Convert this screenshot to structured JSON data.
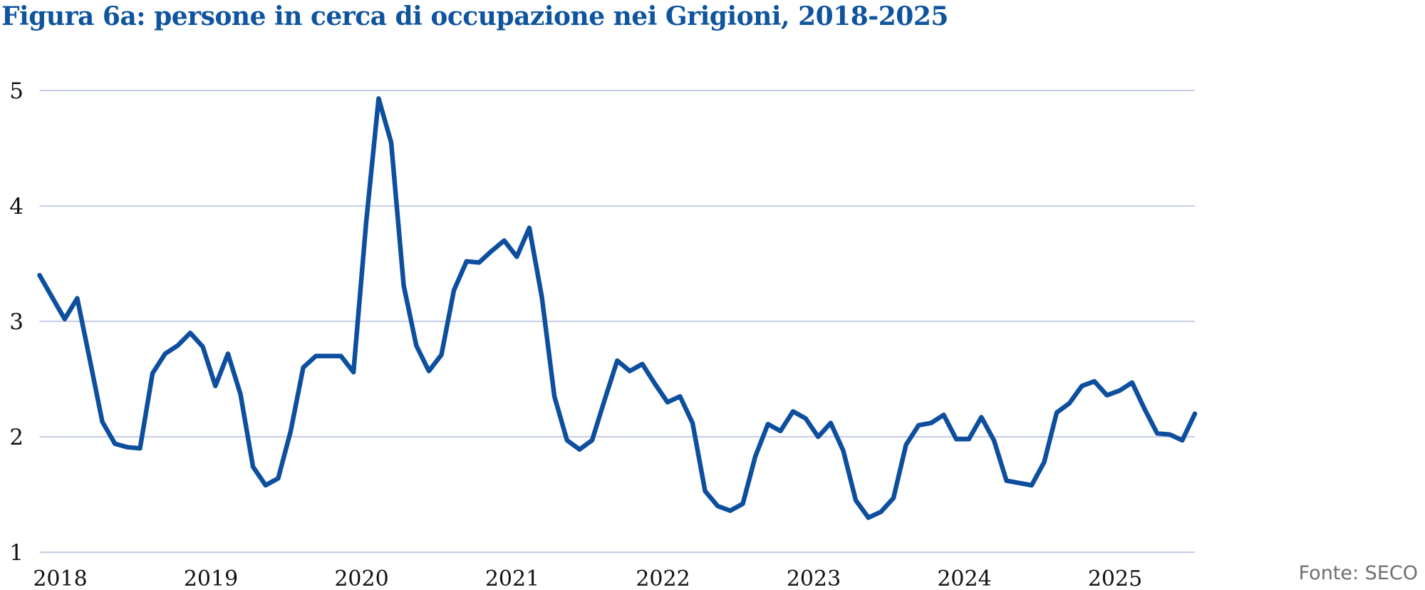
{
  "title": "Figura 6a: persone in cerca di occupazione nei Grigioni, 2018-2025",
  "source": "Fonte: SECO",
  "colors": {
    "line": "#0D4F9E",
    "title": "#0F549E",
    "grid": "#C5CDE6",
    "tick_label": "#111111",
    "source": "#6E6E6E",
    "background": "#FFFFFF"
  },
  "chart_data": {
    "type": "line",
    "title": "Figura 6a: persone in cerca di occupazione nei Grigioni, 2018-2025",
    "xlabel": "",
    "ylabel": "",
    "x_start": "2018-01",
    "x_end": "2025-09",
    "frequency": "monthly",
    "ylim": [
      1,
      5
    ],
    "y_ticks": [
      5,
      4,
      3,
      2,
      1
    ],
    "year_labels": [
      "2018",
      "2019",
      "2020",
      "2021",
      "2022",
      "2023",
      "2024",
      "2025"
    ],
    "grid": "horizontal",
    "legend": "none",
    "series": [
      {
        "name": "persone in cerca di occupazione nei Grigioni (%)",
        "values": [
          3.4,
          3.21,
          3.02,
          3.2,
          2.67,
          2.13,
          1.94,
          1.91,
          1.9,
          2.55,
          2.72,
          2.79,
          2.9,
          2.78,
          2.44,
          2.72,
          2.37,
          1.74,
          1.58,
          1.64,
          2.05,
          2.6,
          2.7,
          2.7,
          2.7,
          2.56,
          3.85,
          4.93,
          4.55,
          3.31,
          2.79,
          2.57,
          2.71,
          3.27,
          3.52,
          3.51,
          3.61,
          3.7,
          3.56,
          3.81,
          3.21,
          2.35,
          1.97,
          1.89,
          1.97,
          2.32,
          2.66,
          2.57,
          2.63,
          2.46,
          2.3,
          2.35,
          2.12,
          1.53,
          1.4,
          1.36,
          1.42,
          1.83,
          2.11,
          2.05,
          2.22,
          2.16,
          2.0,
          2.12,
          1.88,
          1.45,
          1.3,
          1.35,
          1.47,
          1.93,
          2.1,
          2.12,
          2.19,
          1.98,
          1.98,
          2.17,
          1.97,
          1.62,
          1.6,
          1.58,
          1.78,
          2.21,
          2.29,
          2.44,
          2.48,
          2.36,
          2.4,
          2.47,
          2.24,
          2.03,
          2.02,
          1.97,
          2.2
        ]
      }
    ]
  }
}
